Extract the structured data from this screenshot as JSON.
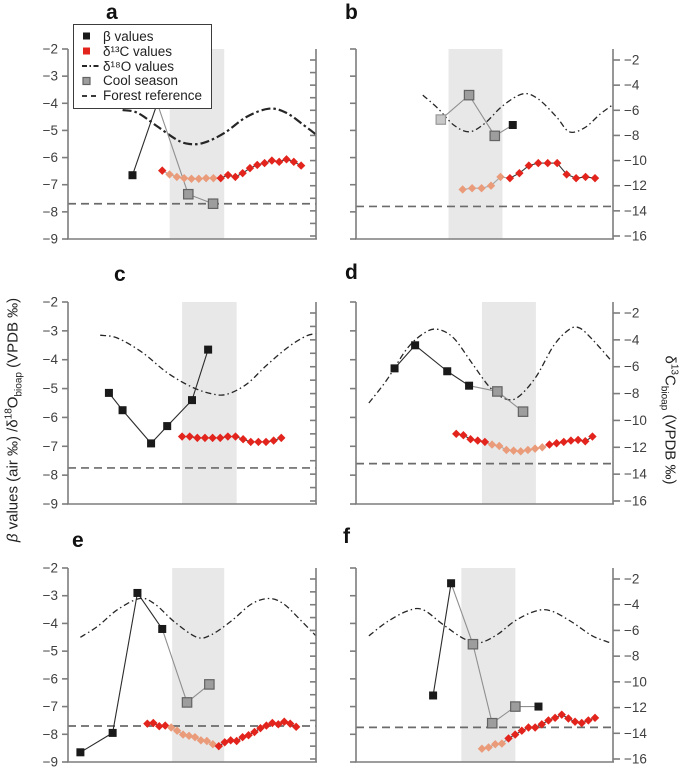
{
  "figure_title": "",
  "legend": {
    "items": [
      {
        "marker": "square-black",
        "label": "β values"
      },
      {
        "marker": "square-red",
        "label": "δ¹³C values"
      },
      {
        "marker": "line-dashdot",
        "label": "δ¹⁸O values"
      },
      {
        "marker": "square-gray",
        "label": "Cool season"
      },
      {
        "marker": "line-dashed",
        "label": "Forest reference"
      }
    ]
  },
  "axes_labels": {
    "left": {
      "sym": "β",
      "text1": " values (air ‰) /δ",
      "sup": "18",
      "elem": "O",
      "sub": "bioap",
      "text2": " (VPDB ‰)"
    },
    "right": {
      "text1": "δ",
      "sup": "13",
      "elem": "C",
      "sub": "bioap",
      "text2": " (VPDB ‰)"
    }
  },
  "colors": {
    "beta": "#1a1a1a",
    "d13c_red": "#e3241d",
    "d13c_salmon": "#ea9b7a",
    "cool_gray": "#9d9d9d",
    "cool_gray_border": "#636363",
    "cool_light": "#c8c8c8",
    "cool_light_border": "#9a9a9a",
    "band": "#e8e8e8",
    "reference": "#6b6b6b",
    "d18o": "#262626",
    "axis": "#7d7d7d",
    "tick_text": "#3f3f3f",
    "line_dark": "#2b2b2b",
    "line_gray": "#8f8f8f"
  },
  "chart_data": {
    "type": "line",
    "left_axis": {
      "title": "β values (air ‰) /δ18Obioap (VPDB ‰)",
      "range": [
        -2,
        -9
      ],
      "ticks": [
        -2,
        -3,
        -4,
        -5,
        -6,
        -7,
        -8,
        -9
      ]
    },
    "right_axis": {
      "title": "δ13Cbioap (VPDB ‰)",
      "range": [
        -2,
        -16
      ],
      "tick_labels": [
        -2,
        -4,
        -6,
        -8,
        -10,
        -12,
        -14,
        -16
      ]
    },
    "panels": [
      {
        "letter": "a",
        "col": 0,
        "row": 0,
        "band_x": [
          0.41,
          0.63
        ],
        "forest_reference": -7.7,
        "beta_cool": [
          {
            "x": 0.26,
            "y": -6.65,
            "type": "beta"
          },
          {
            "x": 0.36,
            "y": -4.0,
            "type": "beta"
          },
          {
            "x": 0.485,
            "y": -7.35,
            "type": "cool"
          },
          {
            "x": 0.585,
            "y": -7.7,
            "type": "cool"
          }
        ],
        "d13c": {
          "x_start": 0.38,
          "x_end": 0.94,
          "salmon_from": 1,
          "salmon_to": 7,
          "values": [
            -10.8,
            -11.1,
            -11.3,
            -11.4,
            -11.45,
            -11.45,
            -11.4,
            -11.4,
            -11.4,
            -11.15,
            -11.3,
            -11.0,
            -10.6,
            -10.35,
            -10.2,
            -10.0,
            -10.1,
            -9.9,
            -10.1,
            -10.4
          ]
        },
        "d18o": {
          "bold": true,
          "points": [
            [
              0.22,
              -4.25
            ],
            [
              0.28,
              -4.35
            ],
            [
              0.36,
              -4.85
            ],
            [
              0.44,
              -5.35
            ],
            [
              0.49,
              -5.5
            ],
            [
              0.55,
              -5.45
            ],
            [
              0.63,
              -5.1
            ],
            [
              0.72,
              -4.5
            ],
            [
              0.81,
              -4.2
            ],
            [
              0.88,
              -4.35
            ],
            [
              0.95,
              -4.8
            ],
            [
              1.0,
              -5.15
            ]
          ]
        }
      },
      {
        "letter": "b",
        "col": 1,
        "row": 0,
        "band_x": [
          0.36,
          0.57
        ],
        "forest_reference": -7.8,
        "beta_cool": [
          {
            "x": 0.33,
            "y": -4.6,
            "type": "cool-light"
          },
          {
            "x": 0.44,
            "y": -3.7,
            "type": "cool"
          },
          {
            "x": 0.54,
            "y": -5.2,
            "type": "cool"
          },
          {
            "x": 0.61,
            "y": -4.8,
            "type": "beta"
          }
        ],
        "d13c": {
          "x_start": 0.415,
          "x_end": 0.93,
          "salmon_from": 0,
          "salmon_to": 4,
          "values": [
            -12.3,
            -12.2,
            -12.2,
            -12.0,
            -11.3,
            -11.4,
            -11.0,
            -10.4,
            -10.2,
            -10.2,
            -10.2,
            -11.1,
            -11.4,
            -11.3,
            -11.4
          ]
        },
        "d18o": {
          "bold": false,
          "points": [
            [
              0.26,
              -3.7
            ],
            [
              0.32,
              -4.2
            ],
            [
              0.38,
              -4.8
            ],
            [
              0.44,
              -5.05
            ],
            [
              0.5,
              -4.75
            ],
            [
              0.57,
              -4.1
            ],
            [
              0.65,
              -3.65
            ],
            [
              0.71,
              -3.85
            ],
            [
              0.78,
              -4.5
            ],
            [
              0.83,
              -5.05
            ],
            [
              0.89,
              -4.9
            ],
            [
              0.95,
              -4.4
            ],
            [
              1.0,
              -4.05
            ]
          ]
        }
      },
      {
        "letter": "c",
        "col": 0,
        "row": 1,
        "band_x": [
          0.46,
          0.68
        ],
        "forest_reference": -7.75,
        "beta_cool": [
          {
            "x": 0.165,
            "y": -5.15,
            "type": "beta"
          },
          {
            "x": 0.22,
            "y": -5.75,
            "type": "beta"
          },
          {
            "x": 0.335,
            "y": -6.9,
            "type": "beta"
          },
          {
            "x": 0.4,
            "y": -6.3,
            "type": "beta"
          },
          {
            "x": 0.5,
            "y": -5.4,
            "type": "beta"
          },
          {
            "x": 0.565,
            "y": -3.65,
            "type": "beta"
          }
        ],
        "d13c": {
          "x_start": 0.46,
          "x_end": 0.86,
          "salmon_from": -1,
          "salmon_to": -1,
          "values": [
            -11.2,
            -11.2,
            -11.3,
            -11.3,
            -11.3,
            -11.3,
            -11.2,
            -11.2,
            -11.4,
            -11.6,
            -11.6,
            -11.6,
            -11.5,
            -11.3
          ]
        },
        "d18o": {
          "bold": false,
          "points": [
            [
              0.13,
              -3.15
            ],
            [
              0.2,
              -3.25
            ],
            [
              0.3,
              -3.75
            ],
            [
              0.4,
              -4.45
            ],
            [
              0.5,
              -4.95
            ],
            [
              0.58,
              -5.18
            ],
            [
              0.64,
              -5.2
            ],
            [
              0.72,
              -4.85
            ],
            [
              0.8,
              -4.2
            ],
            [
              0.89,
              -3.55
            ],
            [
              0.96,
              -3.18
            ],
            [
              1.0,
              -3.1
            ]
          ]
        }
      },
      {
        "letter": "d",
        "col": 1,
        "row": 1,
        "band_x": [
          0.49,
          0.7
        ],
        "forest_reference": -7.6,
        "beta_cool": [
          {
            "x": 0.15,
            "y": -4.3,
            "type": "beta"
          },
          {
            "x": 0.23,
            "y": -3.5,
            "type": "beta"
          },
          {
            "x": 0.355,
            "y": -4.4,
            "type": "beta"
          },
          {
            "x": 0.44,
            "y": -4.9,
            "type": "beta"
          },
          {
            "x": 0.55,
            "y": -5.1,
            "type": "cool"
          },
          {
            "x": 0.65,
            "y": -5.8,
            "type": "cool"
          }
        ],
        "d13c": {
          "x_start": 0.39,
          "x_end": 0.92,
          "salmon_from": 5,
          "salmon_to": 12,
          "values": [
            -11.0,
            -11.1,
            -11.4,
            -11.5,
            -11.6,
            -11.8,
            -11.9,
            -12.2,
            -12.25,
            -12.3,
            -12.2,
            -12.1,
            -12.0,
            -11.8,
            -11.7,
            -11.6,
            -11.5,
            -11.45,
            -11.55,
            -11.2
          ]
        },
        "d18o": {
          "bold": false,
          "points": [
            [
              0.05,
              -5.5
            ],
            [
              0.12,
              -4.7
            ],
            [
              0.2,
              -3.6
            ],
            [
              0.27,
              -3.05
            ],
            [
              0.32,
              -2.95
            ],
            [
              0.38,
              -3.25
            ],
            [
              0.45,
              -4.1
            ],
            [
              0.52,
              -4.95
            ],
            [
              0.58,
              -5.35
            ],
            [
              0.63,
              -5.3
            ],
            [
              0.7,
              -4.6
            ],
            [
              0.77,
              -3.5
            ],
            [
              0.83,
              -2.95
            ],
            [
              0.87,
              -2.9
            ],
            [
              0.92,
              -3.3
            ],
            [
              0.99,
              -4.0
            ]
          ]
        }
      },
      {
        "letter": "e",
        "col": 0,
        "row": 2,
        "band_x": [
          0.42,
          0.63
        ],
        "forest_reference": -7.7,
        "beta_cool": [
          {
            "x": 0.05,
            "y": -8.65,
            "type": "beta"
          },
          {
            "x": 0.18,
            "y": -7.95,
            "type": "beta"
          },
          {
            "x": 0.28,
            "y": -2.9,
            "type": "beta"
          },
          {
            "x": 0.38,
            "y": -4.2,
            "type": "beta"
          },
          {
            "x": 0.48,
            "y": -6.85,
            "type": "cool"
          },
          {
            "x": 0.57,
            "y": -6.2,
            "type": "cool"
          }
        ],
        "d13c": {
          "x_start": 0.32,
          "x_end": 0.92,
          "salmon_from": 4,
          "salmon_to": 11,
          "values": [
            -13.25,
            -13.2,
            -13.45,
            -13.4,
            -13.55,
            -13.8,
            -14.1,
            -14.2,
            -14.3,
            -14.55,
            -14.6,
            -14.85,
            -15.0,
            -14.7,
            -14.55,
            -14.6,
            -14.3,
            -14.15,
            -13.9,
            -13.6,
            -13.4,
            -13.2,
            -13.3,
            -13.1,
            -13.25,
            -13.5
          ]
        },
        "d18o": {
          "bold": false,
          "points": [
            [
              0.05,
              -4.5
            ],
            [
              0.12,
              -4.1
            ],
            [
              0.2,
              -3.5
            ],
            [
              0.29,
              -3.1
            ],
            [
              0.35,
              -3.3
            ],
            [
              0.43,
              -3.95
            ],
            [
              0.52,
              -4.5
            ],
            [
              0.58,
              -4.4
            ],
            [
              0.66,
              -3.9
            ],
            [
              0.74,
              -3.3
            ],
            [
              0.81,
              -3.1
            ],
            [
              0.87,
              -3.3
            ],
            [
              0.94,
              -3.9
            ],
            [
              1.0,
              -4.45
            ]
          ]
        }
      },
      {
        "letter": "f",
        "col": 1,
        "row": 2,
        "band_x": [
          0.41,
          0.62
        ],
        "forest_reference": -7.75,
        "beta_cool": [
          {
            "x": 0.3,
            "y": -6.6,
            "type": "beta"
          },
          {
            "x": 0.37,
            "y": -2.55,
            "type": "beta"
          },
          {
            "x": 0.455,
            "y": -4.75,
            "type": "cool"
          },
          {
            "x": 0.53,
            "y": -7.6,
            "type": "cool"
          },
          {
            "x": 0.62,
            "y": -7.0,
            "type": "cool"
          },
          {
            "x": 0.71,
            "y": -7.0,
            "type": "beta"
          }
        ],
        "d13c": {
          "x_start": 0.49,
          "x_end": 0.93,
          "salmon_from": 0,
          "salmon_to": 3,
          "values": [
            -15.2,
            -15.1,
            -14.85,
            -14.8,
            -14.4,
            -14.1,
            -13.8,
            -13.55,
            -13.55,
            -13.3,
            -13.0,
            -12.8,
            -12.55,
            -12.85,
            -13.1,
            -13.2,
            -13.0,
            -12.8
          ]
        },
        "d18o": {
          "bold": false,
          "points": [
            [
              0.05,
              -4.45
            ],
            [
              0.12,
              -3.95
            ],
            [
              0.2,
              -3.55
            ],
            [
              0.26,
              -3.5
            ],
            [
              0.34,
              -4.05
            ],
            [
              0.42,
              -4.55
            ],
            [
              0.48,
              -4.7
            ],
            [
              0.55,
              -4.4
            ],
            [
              0.62,
              -3.9
            ],
            [
              0.7,
              -3.55
            ],
            [
              0.76,
              -3.55
            ],
            [
              0.84,
              -3.95
            ],
            [
              0.92,
              -4.45
            ],
            [
              0.99,
              -4.7
            ]
          ]
        }
      }
    ]
  }
}
